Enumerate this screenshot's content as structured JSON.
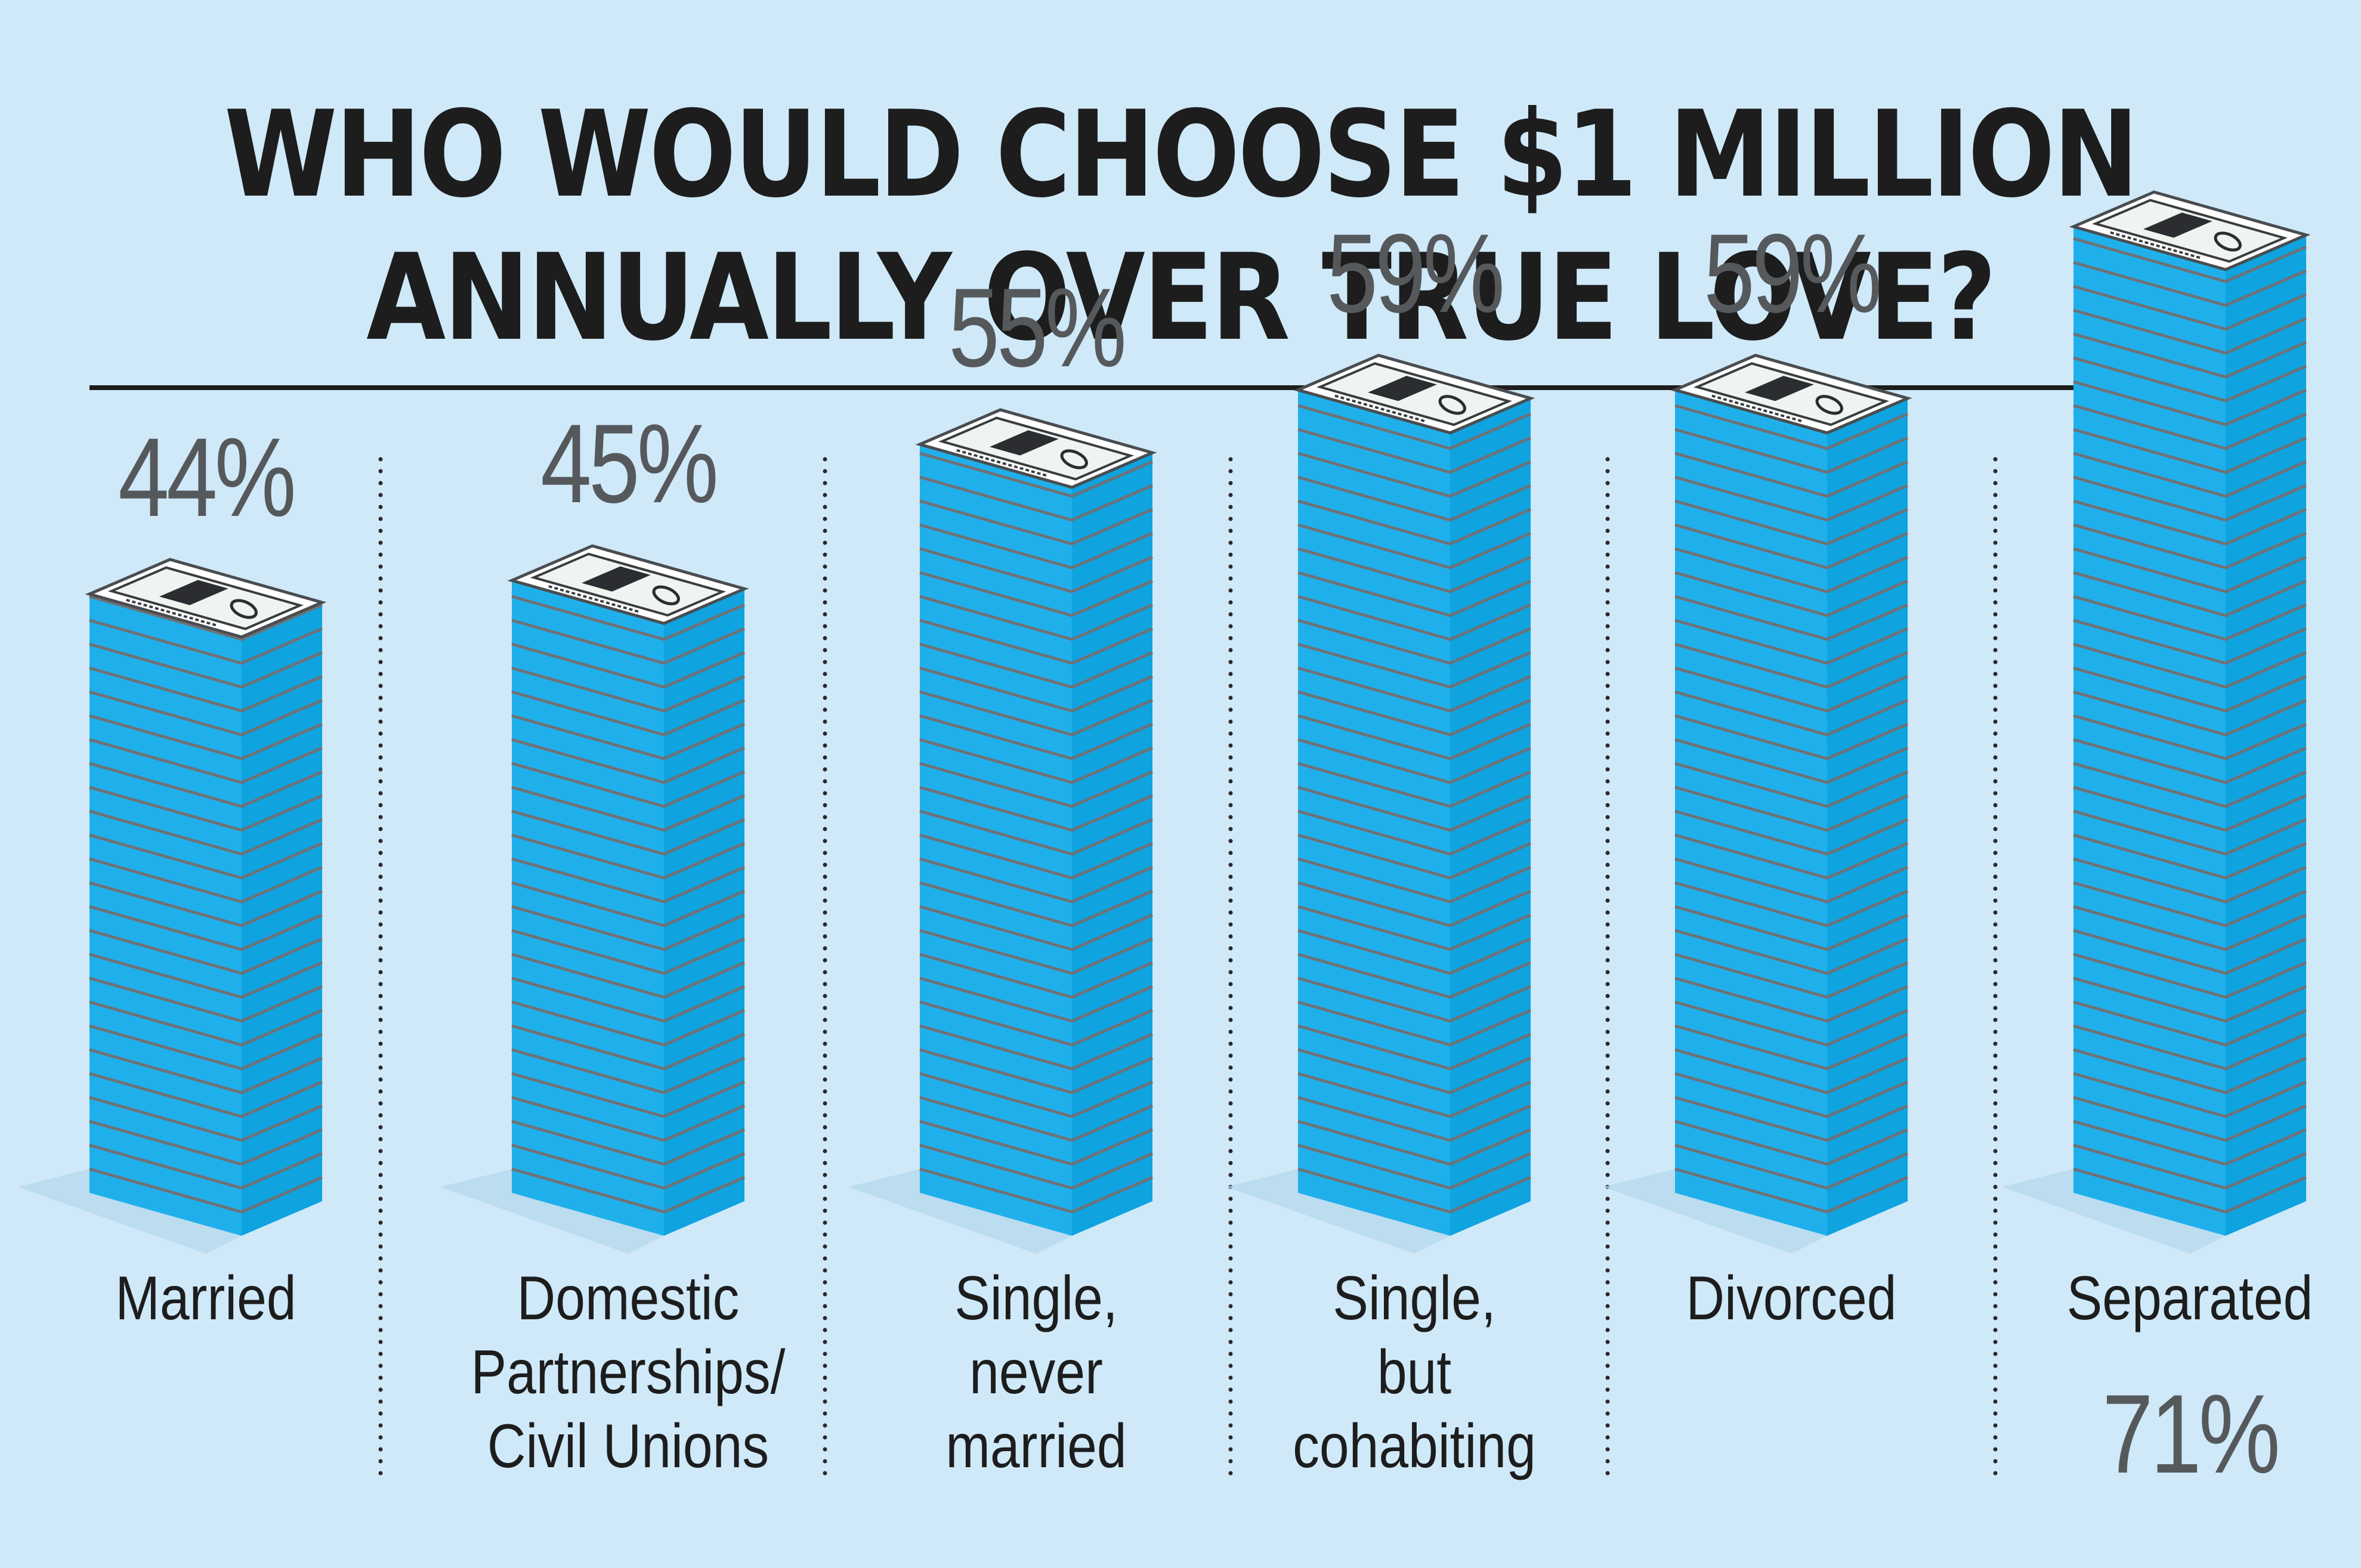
{
  "title_lines": [
    "WHO WOULD CHOOSE $1 MILLION",
    "ANNUALLY OVER TRUE LOVE?"
  ],
  "colors": {
    "background": "#cfe9f9",
    "stack_front": "#1fb0ec",
    "stack_side": "#0fa3e0",
    "stack_lines": "#6e7277",
    "bill": "#eef5f0",
    "text": "#1d1d1d",
    "value_text": "#56595c"
  },
  "icons": [
    "dollar-bill-stack-icon"
  ],
  "chart_data": {
    "type": "bar",
    "title": "WHO WOULD CHOOSE $1 MILLION ANNUALLY OVER TRUE LOVE?",
    "categories": [
      "Married",
      "Domestic Partnerships/ Civil Unions",
      "Single, never married",
      "Single, but cohabiting",
      "Divorced",
      "Separated"
    ],
    "category_lines": [
      [
        "Married"
      ],
      [
        "Domestic",
        "Partnerships/",
        "Civil Unions"
      ],
      [
        "Single,",
        "never",
        "married"
      ],
      [
        "Single,",
        "but",
        "cohabiting"
      ],
      [
        "Divorced"
      ],
      [
        "Separated"
      ]
    ],
    "values": [
      44,
      45,
      55,
      59,
      59,
      71
    ],
    "value_labels": [
      "44%",
      "45%",
      "55%",
      "59%",
      "59%",
      "71%"
    ],
    "unit": "%",
    "grid": false,
    "legend": "none"
  }
}
